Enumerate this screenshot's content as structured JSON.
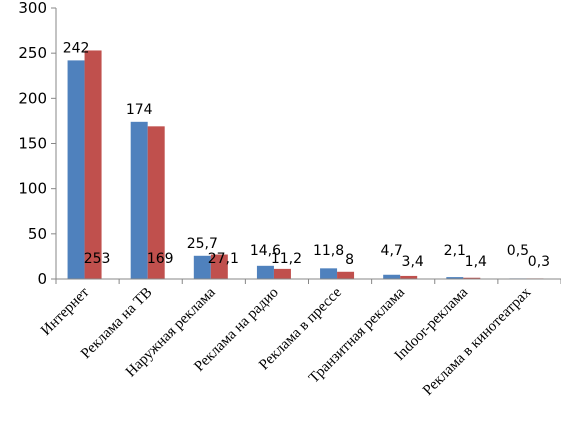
{
  "chart_data": {
    "type": "bar",
    "title": "",
    "xlabel": "",
    "ylabel": "",
    "categories": [
      "Интернет",
      "Реклама на ТВ",
      "Наружная реклама",
      "Реклама на радио",
      "Реклама в прессе",
      "Транзитная реклама",
      "Indoor-реклама",
      "Реклама в кинотеатрах"
    ],
    "series": [
      {
        "values": [
          242,
          174,
          25.7,
          14.6,
          11.8,
          4.7,
          2.1,
          0.5
        ],
        "labels": [
          "242",
          "174",
          "25,7",
          "14,6",
          "11,8",
          "4,7",
          "2,1",
          "0,5"
        ],
        "color": "#4f81bd"
      },
      {
        "values": [
          253,
          169,
          27.1,
          11.2,
          8,
          3.4,
          1.4,
          0.3
        ],
        "labels": [
          "253",
          "169",
          "27,1",
          "11,2",
          "8",
          "3,4",
          "1,4",
          "0,3"
        ],
        "color": "#c0504d"
      }
    ],
    "ylim": [
      0,
      300
    ],
    "yticks": [
      0,
      50,
      100,
      150,
      200,
      250,
      300
    ],
    "grid": false,
    "legend": "none"
  }
}
